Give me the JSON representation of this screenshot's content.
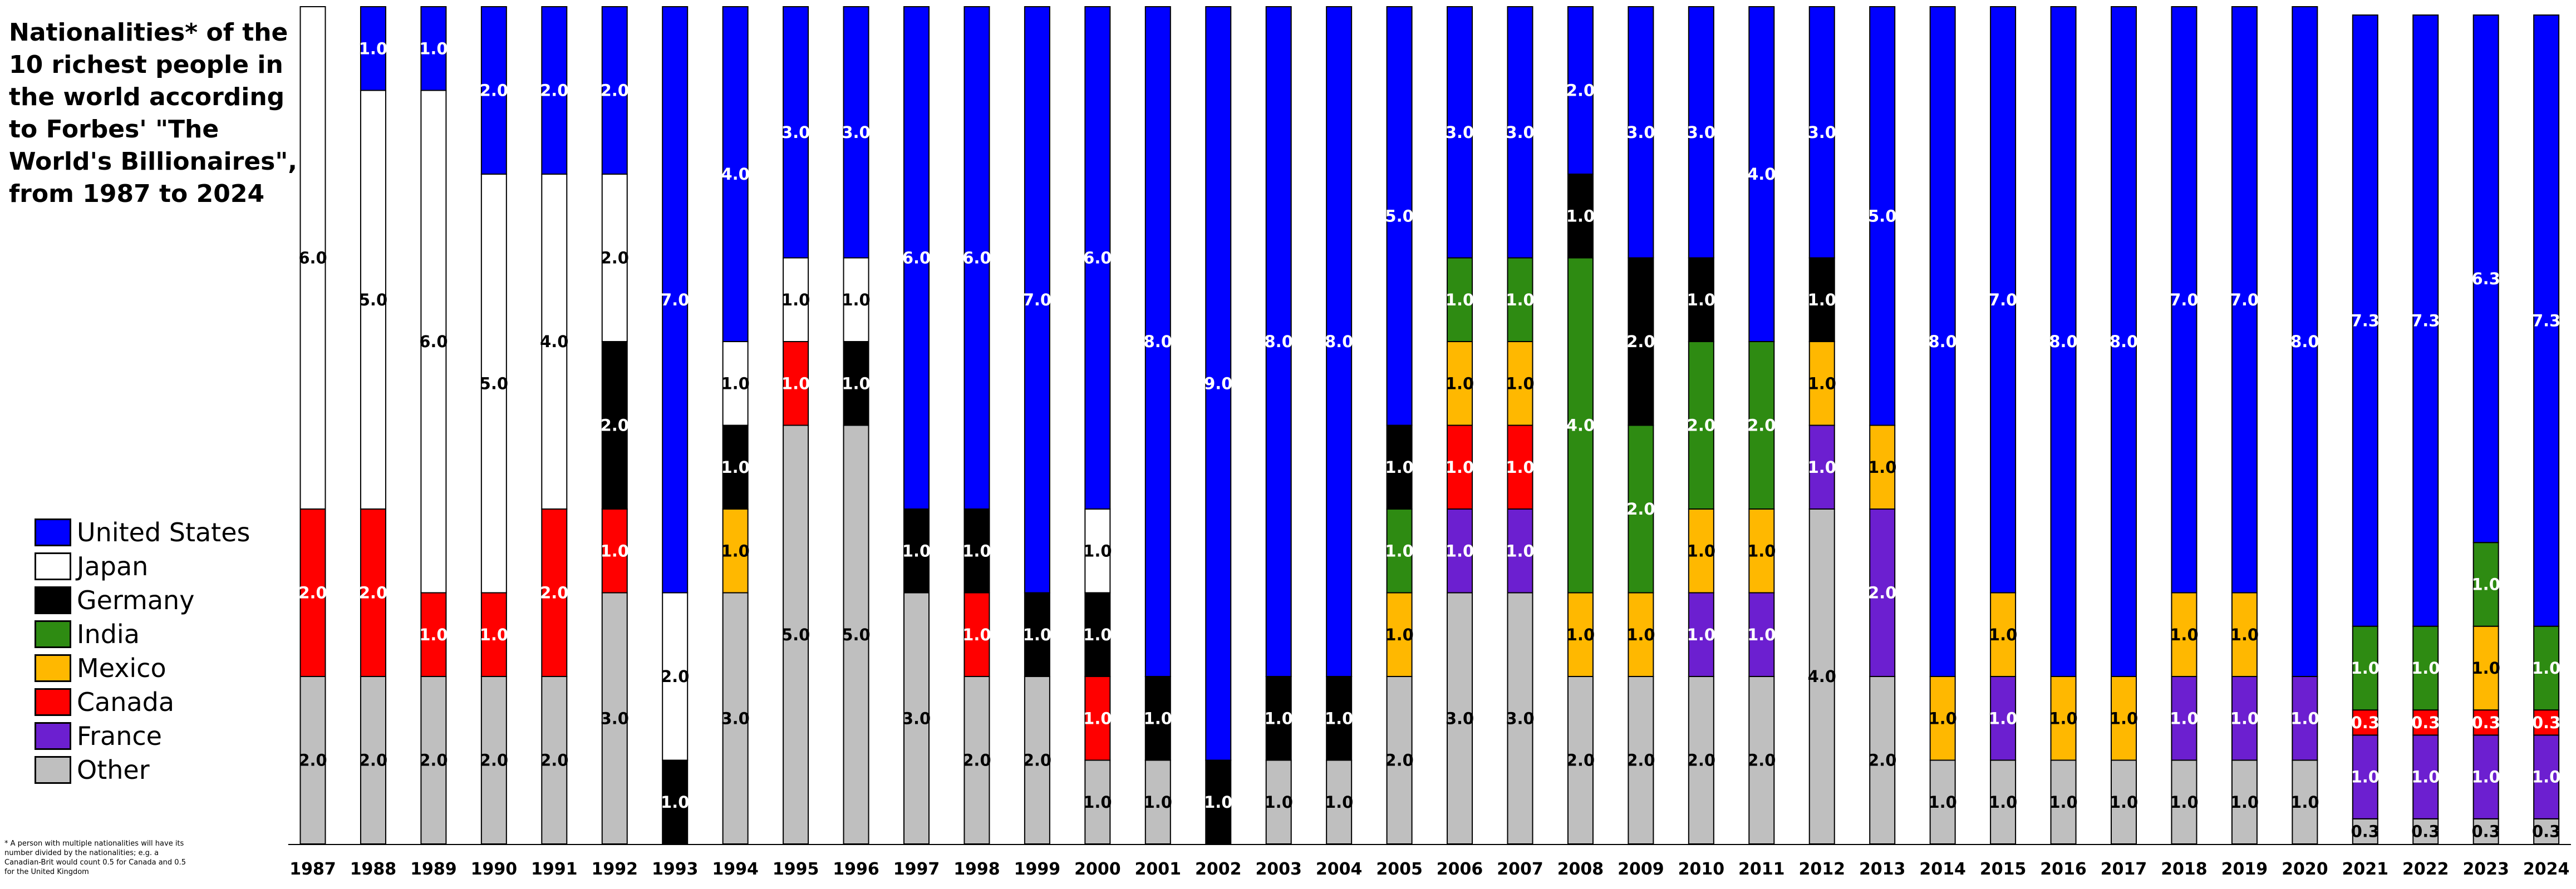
{
  "chart_data": {
    "type": "bar",
    "stacked": true,
    "title": "Nationalities* of the 10 richest people in the world according to Forbes' \"The World's Billionaires\", from 1987 to 2024",
    "footnote": "* A person with multiple nationalities will have its number divided by the nationalities; e.g. a Canadian-Brit would count 0.5 for Canada and 0.5 for the United Kingdom",
    "xlabel": "",
    "ylabel": "",
    "ylim": [
      0,
      10
    ],
    "grid": false,
    "legend_position": "left",
    "legend_order": [
      "United States",
      "Japan",
      "Germany",
      "India",
      "Mexico",
      "Canada",
      "France",
      "Other"
    ],
    "stack_order_bottom_to_top": [
      "Other",
      "France",
      "Canada",
      "Mexico",
      "India",
      "Germany",
      "Japan",
      "United States"
    ],
    "colors": {
      "United States": "#0000ff",
      "Japan": "#ffffff",
      "Germany": "#000000",
      "India": "#2e8b12",
      "Mexico": "#ffb800",
      "Canada": "#ff0000",
      "France": "#6c1fd0",
      "Other": "#bfbfbf"
    },
    "label_colors": {
      "United States": "#ffffff",
      "Japan": "#000000",
      "Germany": "#ffffff",
      "India": "#ffffff",
      "Mexico": "#000000",
      "Canada": "#ffffff",
      "France": "#ffffff",
      "Other": "#000000"
    },
    "categories": [
      "1987",
      "1988",
      "1989",
      "1990",
      "1991",
      "1992",
      "1993",
      "1994",
      "1995",
      "1996",
      "1997",
      "1998",
      "1999",
      "2000",
      "2001",
      "2002",
      "2003",
      "2004",
      "2005",
      "2006",
      "2007",
      "2008",
      "2009",
      "2010",
      "2011",
      "2012",
      "2013",
      "2014",
      "2015",
      "2016",
      "2017",
      "2018",
      "2019",
      "2020",
      "2021",
      "2022",
      "2023",
      "2024"
    ],
    "series": [
      {
        "name": "Other",
        "values": [
          2,
          2,
          2,
          2,
          2,
          3,
          0,
          3,
          5,
          5,
          3,
          2,
          2,
          1,
          1,
          0,
          1,
          1,
          2,
          3,
          3,
          2,
          2,
          2,
          2,
          4,
          2,
          1,
          1,
          1,
          1,
          1,
          1,
          1,
          0.3,
          0.3,
          0.3,
          0.3
        ]
      },
      {
        "name": "France",
        "values": [
          0,
          0,
          0,
          0,
          0,
          0,
          0,
          0,
          0,
          0,
          0,
          0,
          0,
          0,
          0,
          0,
          0,
          0,
          0,
          1,
          1,
          0,
          0,
          1,
          1,
          1,
          2,
          0,
          1,
          0,
          0,
          1,
          1,
          1,
          1,
          1,
          1,
          1
        ]
      },
      {
        "name": "Canada",
        "values": [
          2,
          2,
          1,
          1,
          2,
          1,
          0,
          0,
          1,
          0,
          0,
          1,
          0,
          1,
          0,
          0,
          0,
          0,
          0,
          1,
          1,
          0,
          0,
          0,
          0,
          0,
          0,
          0,
          0,
          0,
          0,
          0,
          0,
          0,
          0.3,
          0.3,
          0.3,
          0.3
        ]
      },
      {
        "name": "Mexico",
        "values": [
          0,
          0,
          0,
          0,
          0,
          0,
          0,
          1,
          0,
          0,
          0,
          0,
          0,
          0,
          0,
          0,
          0,
          0,
          1,
          1,
          1,
          1,
          1,
          1,
          1,
          1,
          1,
          1,
          1,
          1,
          1,
          1,
          1,
          0,
          0,
          0,
          1,
          0
        ]
      },
      {
        "name": "India",
        "values": [
          0,
          0,
          0,
          0,
          0,
          0,
          0,
          0,
          0,
          0,
          0,
          0,
          0,
          0,
          0,
          0,
          0,
          0,
          1,
          1,
          1,
          4,
          2,
          2,
          2,
          0,
          0,
          0,
          0,
          0,
          0,
          0,
          0,
          0,
          1,
          1,
          1,
          1
        ]
      },
      {
        "name": "Germany",
        "values": [
          0,
          0,
          0,
          0,
          0,
          2,
          1,
          1,
          0,
          1,
          1,
          1,
          1,
          1,
          1,
          1,
          1,
          1,
          1,
          0,
          0,
          1,
          2,
          1,
          0,
          1,
          0,
          0,
          0,
          0,
          0,
          0,
          0,
          0,
          0,
          0,
          0,
          0
        ]
      },
      {
        "name": "Japan",
        "values": [
          6,
          5,
          6,
          5,
          4,
          2,
          2,
          1,
          1,
          1,
          0,
          0,
          0,
          1,
          0,
          0,
          0,
          0,
          0,
          0,
          0,
          0,
          0,
          0,
          0,
          0,
          0,
          0,
          0,
          0,
          0,
          0,
          0,
          0,
          0,
          0,
          0,
          0
        ]
      },
      {
        "name": "United States",
        "values": [
          0,
          1,
          1,
          2,
          2,
          2,
          7,
          4,
          3,
          3,
          6,
          6,
          7,
          6,
          8,
          9,
          8,
          8,
          5,
          3,
          3,
          2,
          3,
          3,
          4,
          3,
          5,
          8,
          7,
          8,
          8,
          7,
          7,
          8,
          7.3,
          7.3,
          6.3,
          7.3
        ]
      }
    ]
  }
}
